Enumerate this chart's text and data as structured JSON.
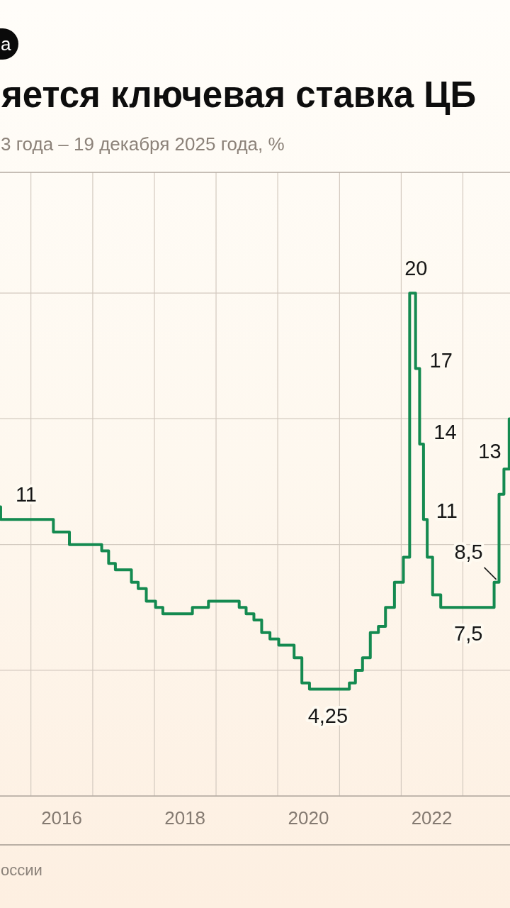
{
  "chart_data": {
    "type": "step",
    "title": "яется ключевая ставка ЦБ",
    "subtitle": "3 года – 19 декабря 2025 года, %",
    "annotations": [
      "а",
      "оссии"
    ],
    "x": [
      "2015-07-02",
      "2015-07-06",
      "2016-05-13",
      "2016-08-16",
      "2017-02-23",
      "2017-04-05",
      "2017-05-15",
      "2017-08-18",
      "2017-09-27",
      "2017-11-14",
      "2018-01-08",
      "2018-02-20",
      "2018-08-14",
      "2018-11-17",
      "2019-05-18",
      "2019-06-28",
      "2019-08-13",
      "2019-09-28",
      "2019-11-16",
      "2020-01-07",
      "2020-04-07",
      "2020-05-23",
      "2020-07-07",
      "2021-02-28",
      "2021-04-05",
      "2021-05-17",
      "2021-07-02",
      "2021-08-19",
      "2021-09-30",
      "2021-11-22",
      "2022-01-14",
      "2022-02-20",
      "2022-03-27",
      "2022-04-20",
      "2022-05-13",
      "2022-06-04",
      "2022-07-06",
      "2022-08-23",
      "2023-07-05",
      "2023-08-03",
      "2023-09-01",
      "2023-10-02"
    ],
    "series": [
      {
        "color": "#148a50",
        "values": [
          11.5,
          11,
          10.5,
          10,
          9.75,
          9.25,
          9,
          8.5,
          8.25,
          7.75,
          7.5,
          7.25,
          7.5,
          7.75,
          7.5,
          7.25,
          7,
          6.5,
          6.25,
          6,
          5.5,
          4.5,
          4.25,
          4.5,
          5,
          5.5,
          6.5,
          6.75,
          7.5,
          8.5,
          9.5,
          20,
          17,
          14,
          11,
          9.5,
          8,
          7.5,
          8.5,
          12,
          13,
          15
        ],
        "value_labels": [
          null,
          "11",
          null,
          null,
          null,
          null,
          null,
          null,
          null,
          null,
          null,
          null,
          null,
          null,
          null,
          null,
          null,
          null,
          null,
          null,
          null,
          null,
          "4,25",
          null,
          null,
          null,
          null,
          null,
          null,
          null,
          null,
          "20",
          "17",
          "14",
          "11",
          null,
          null,
          "7,5",
          "8,5",
          null,
          "13",
          null
        ]
      }
    ],
    "xlim": [
      "2015-07-02",
      "2023-10-07"
    ],
    "ylim": [
      0,
      24.8
    ],
    "xticks": [
      {
        "value": "2016-01-01",
        "label": null
      },
      {
        "value": "2017-01-01",
        "label": null
      },
      {
        "value": "2018-01-01",
        "label": null
      },
      {
        "value": "2019-01-01",
        "label": null
      },
      {
        "value": "2020-01-01",
        "label": null
      },
      {
        "value": "2021-01-01",
        "label": null
      },
      {
        "value": "2022-01-01",
        "label": null
      },
      {
        "value": "2023-01-01",
        "label": null
      },
      {
        "value": "2016-07-01",
        "label": "2016"
      },
      {
        "value": "2018-07-01",
        "label": "2018"
      },
      {
        "value": "2020-07-01",
        "label": "2020"
      },
      {
        "value": "2022-07-01",
        "label": "2022"
      }
    ],
    "yticks": [
      0,
      5,
      10,
      15,
      20
    ],
    "grid": true,
    "tick_labels": "x"
  }
}
